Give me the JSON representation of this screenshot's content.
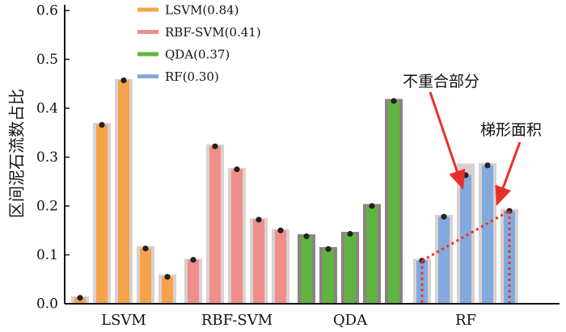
{
  "chart_data": {
    "type": "bar",
    "ylabel": "区间泥石流数占比",
    "ylim": [
      0,
      0.6
    ],
    "yticks": [
      "0.0",
      "0.1",
      "0.2",
      "0.3",
      "0.4",
      "0.5",
      "0.6"
    ],
    "groups": [
      {
        "name": "LSVM",
        "legend": "LSVM(0.84)",
        "color": "#f5a34a",
        "values": [
          0.012,
          0.366,
          0.457,
          0.113,
          0.055
        ],
        "background_values": [
          0.015,
          0.37,
          0.46,
          0.118,
          0.06
        ]
      },
      {
        "name": "RBF-SVM",
        "legend": "RBF-SVM(0.41)",
        "color": "#f08e8a",
        "values": [
          0.09,
          0.322,
          0.275,
          0.172,
          0.15
        ],
        "background_values": [
          0.092,
          0.326,
          0.278,
          0.175,
          0.153
        ]
      },
      {
        "name": "QDA",
        "legend": "QDA(0.37)",
        "color": "#5fb43f",
        "values": [
          0.138,
          0.112,
          0.143,
          0.2,
          0.415
        ],
        "background_values": [
          0.142,
          0.116,
          0.147,
          0.204,
          0.419
        ]
      },
      {
        "name": "RF",
        "legend": "RF(0.30)",
        "color": "#82aadc",
        "values": [
          0.088,
          0.178,
          0.263,
          0.283,
          0.19
        ],
        "background_values": [
          0.092,
          0.182,
          0.287,
          0.288,
          0.194
        ]
      }
    ],
    "background_color": "#d9d1cf",
    "background_color_qda": "#8c8282",
    "annotations": [
      {
        "text": "不重合部分"
      },
      {
        "text": "梯形面积"
      }
    ]
  },
  "colors": {
    "arrow": "#e8302a",
    "dotted_line": "#e8302a",
    "dot": "#222222"
  }
}
